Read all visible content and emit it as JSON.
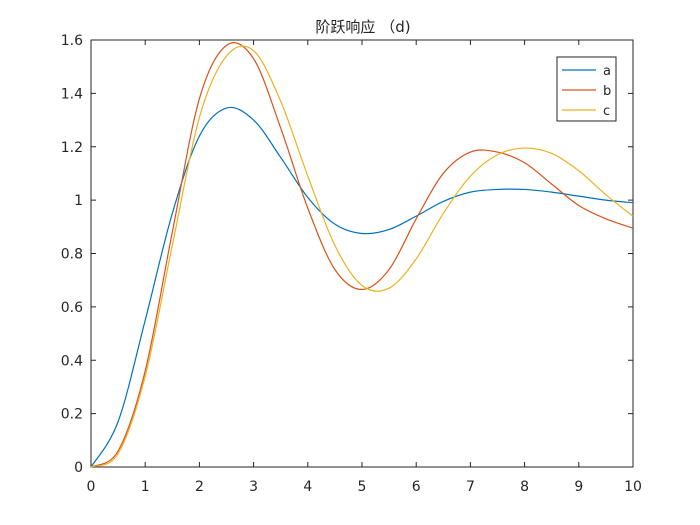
{
  "chart_data": {
    "type": "line",
    "title": "阶跃响应 （d)",
    "xlabel": "",
    "ylabel": "",
    "xlim": [
      0,
      10
    ],
    "ylim": [
      0,
      1.6
    ],
    "xticks": [
      0,
      1,
      2,
      3,
      4,
      5,
      6,
      7,
      8,
      9,
      10
    ],
    "yticks": [
      0,
      0.2,
      0.4,
      0.6,
      0.8,
      1,
      1.2,
      1.4,
      1.6
    ],
    "xtick_labels": [
      "0",
      "1",
      "2",
      "3",
      "4",
      "5",
      "6",
      "7",
      "8",
      "9",
      "10"
    ],
    "ytick_labels": [
      "0",
      "0.2",
      "0.4",
      "0.6",
      "0.8",
      "1",
      "1.2",
      "1.4",
      "1.6"
    ],
    "grid": false,
    "legend_position": "top-right",
    "x": [
      0,
      0.5,
      1,
      1.5,
      2,
      2.5,
      3,
      3.5,
      4,
      4.5,
      5,
      5.5,
      6,
      6.5,
      7,
      7.5,
      8,
      8.5,
      9,
      9.5,
      10
    ],
    "series": [
      {
        "name": "a",
        "color": "#0072BD",
        "values": [
          0,
          0.17,
          0.55,
          0.95,
          1.24,
          1.345,
          1.3,
          1.16,
          1.01,
          0.91,
          0.875,
          0.89,
          0.94,
          0.995,
          1.03,
          1.04,
          1.04,
          1.03,
          1.015,
          1.0,
          0.99
        ]
      },
      {
        "name": "b",
        "color": "#D95319",
        "values": [
          0,
          0.06,
          0.36,
          0.88,
          1.38,
          1.58,
          1.53,
          1.27,
          0.97,
          0.74,
          0.665,
          0.74,
          0.93,
          1.1,
          1.18,
          1.18,
          1.14,
          1.06,
          0.98,
          0.93,
          0.895
        ]
      },
      {
        "name": "c",
        "color": "#EDB120",
        "values": [
          0,
          0.05,
          0.34,
          0.83,
          1.31,
          1.54,
          1.56,
          1.37,
          1.09,
          0.83,
          0.68,
          0.67,
          0.78,
          0.95,
          1.09,
          1.17,
          1.195,
          1.175,
          1.11,
          1.02,
          0.94
        ]
      }
    ]
  }
}
